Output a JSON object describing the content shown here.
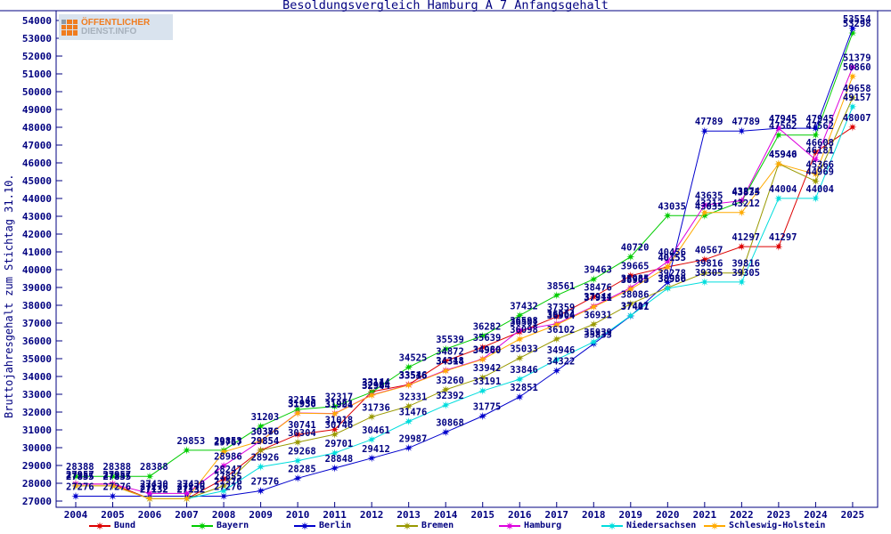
{
  "title": "Besoldungsvergleich Hamburg A 7 Anfangsgehalt",
  "logo": {
    "name": "oeffentlicher-dienst-info-logo",
    "line1": "ÖFFENTLICHER",
    "line2": "DIENST.INFO"
  },
  "axes": {
    "y_label": "Bruttojahresgehalt zum Stichtag 31.10.",
    "y_min": 27000,
    "y_max": 54000,
    "y_step": 1000
  },
  "colors": {
    "frame": "#000080",
    "text": "#000080",
    "background": "#ffffff"
  },
  "chart_data": {
    "type": "line",
    "title": "Besoldungsvergleich Hamburg A 7 Anfangsgehalt",
    "xlabel": "",
    "ylabel": "Bruttojahresgehalt zum Stichtag 31.10.",
    "ylim": [
      27000,
      54000
    ],
    "grid": false,
    "legend_position": "bottom",
    "point_labels": true,
    "x": [
      2004,
      2005,
      2006,
      2007,
      2008,
      2009,
      2010,
      2011,
      2012,
      2013,
      2014,
      2015,
      2016,
      2017,
      2018,
      2019,
      2020,
      2021,
      2022,
      2023,
      2024,
      2025
    ],
    "series": [
      {
        "name": "Bund",
        "color": "#dd0000",
        "values": [
          27957,
          27957,
          27132,
          27132,
          28247,
          29854,
          30741,
          31018,
          33144,
          33546,
          34872,
          35639,
          36501,
          37359,
          38476,
          39665,
          40155,
          40567,
          41297,
          41297,
          46608,
          48007
        ]
      },
      {
        "name": "Bayern",
        "color": "#00cc00",
        "values": [
          28388,
          28388,
          28388,
          29853,
          29853,
          31203,
          32145,
          32317,
          33114,
          34525,
          35539,
          36282,
          37432,
          38561,
          39463,
          40720,
          43035,
          43035,
          43835,
          47562,
          47562,
          53298
        ]
      },
      {
        "name": "Berlin",
        "color": "#0000cc",
        "values": [
          27276,
          27276,
          27276,
          27276,
          27276,
          27576,
          28285,
          28848,
          29412,
          29987,
          30868,
          31775,
          32851,
          34322,
          35833,
          37401,
          39278,
          47789,
          47789,
          47945,
          47945,
          53554
        ]
      },
      {
        "name": "Bremen",
        "color": "#999900",
        "values": [
          27855,
          27855,
          27132,
          27132,
          27855,
          29854,
          30304,
          30746,
          31736,
          32331,
          33260,
          33942,
          35033,
          36102,
          36931,
          38086,
          38986,
          39816,
          39816,
          45946,
          44969,
          49658
        ]
      },
      {
        "name": "Hamburg",
        "color": "#dd00dd",
        "values": [
          27957,
          27957,
          27430,
          27430,
          28986,
          30386,
          31950,
          31921,
          32964,
          33536,
          34348,
          34980,
          36598,
          36964,
          37944,
          38985,
          40456,
          43635,
          43874,
          47945,
          46181,
          51379
        ]
      },
      {
        "name": "Niedersachsen",
        "color": "#00dddd",
        "values": [
          27855,
          27855,
          27132,
          27132,
          27576,
          28926,
          29268,
          29701,
          30461,
          31476,
          32392,
          33191,
          33846,
          34946,
          35939,
          37417,
          38950,
          39305,
          39305,
          44004,
          44004,
          49157
        ]
      },
      {
        "name": "Schleswig-Holstein",
        "color": "#ffaa00",
        "values": [
          27855,
          27855,
          27132,
          27132,
          29767,
          30376,
          31936,
          31904,
          32944,
          33516,
          34314,
          34960,
          36098,
          36904,
          37911,
          38905,
          40155,
          43212,
          43212,
          45940,
          45366,
          50860
        ]
      }
    ]
  }
}
